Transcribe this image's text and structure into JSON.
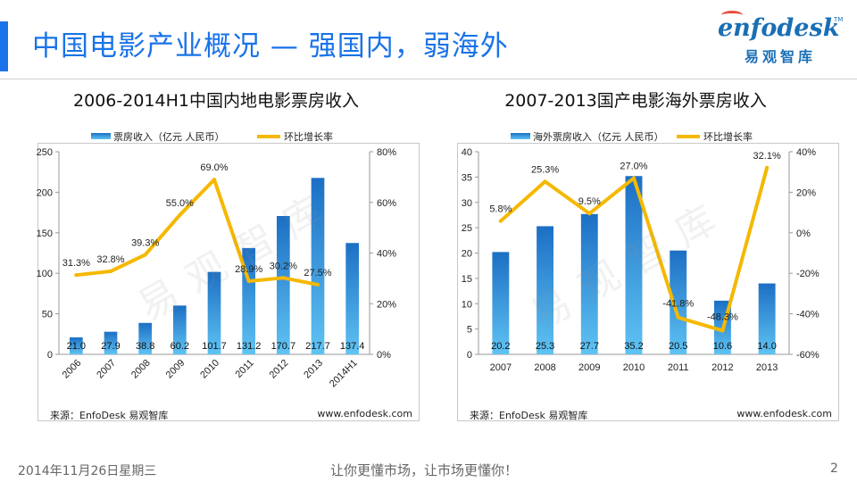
{
  "slide": {
    "title": "中国电影产业概况 — 强国内，弱海外",
    "footer_date": "2014年11月26日星期三",
    "footer_slogan": "让你更懂市场，让市场更懂你！",
    "page_number": "2",
    "accent_color": "#1a73e8"
  },
  "logo": {
    "word": "enfodesk",
    "tm": "TM",
    "cn": "易观智库"
  },
  "watermark": "易观智库",
  "chart_data": [
    {
      "type": "bar",
      "title": "2006-2014H1中国内地电影票房收入",
      "categories": [
        "2006",
        "2007",
        "2008",
        "2009",
        "2010",
        "2011",
        "2012",
        "2013",
        "2014H1"
      ],
      "series": [
        {
          "name": "票房收入（亿元 人民币）",
          "type": "bar",
          "axis": "left",
          "values": [
            21.0,
            27.9,
            38.8,
            60.2,
            101.7,
            131.2,
            170.7,
            217.7,
            137.4
          ]
        },
        {
          "name": "环比增长率",
          "type": "line",
          "axis": "right",
          "values": [
            31.3,
            32.8,
            39.3,
            55.0,
            69.0,
            28.9,
            30.2,
            27.5,
            null
          ]
        }
      ],
      "bar_labels": [
        "21.0",
        "27.9",
        "38.8",
        "60.2",
        "101.7",
        "131.2",
        "170.7",
        "217.7",
        "137.4"
      ],
      "line_labels": [
        "31.3%",
        "32.8%",
        "39.3%",
        "55.0%",
        "69.0%",
        "28.9%",
        "30.2%",
        "27.5%"
      ],
      "left_axis": {
        "ylim": [
          0,
          250
        ],
        "ticks": [
          "0",
          "50",
          "100",
          "150",
          "200",
          "250"
        ]
      },
      "right_axis": {
        "ylim": [
          0,
          80
        ],
        "ticks": [
          "0%",
          "20%",
          "40%",
          "60%",
          "80%"
        ]
      },
      "x_labels_rotated": true,
      "legend_placement": "top",
      "source": "来源：EnfoDesk 易观智库",
      "website": "www.enfodesk.com",
      "colors": {
        "bar": "#2b8fd8",
        "line": "#f5b800"
      }
    },
    {
      "type": "bar",
      "title": "2007-2013国产电影海外票房收入",
      "categories": [
        "2007",
        "2008",
        "2009",
        "2010",
        "2011",
        "2012",
        "2013"
      ],
      "series": [
        {
          "name": "海外票房收入（亿元 人民币）",
          "type": "bar",
          "axis": "left",
          "values": [
            20.2,
            25.3,
            27.7,
            35.2,
            20.5,
            10.6,
            14.0
          ]
        },
        {
          "name": "环比增长率",
          "type": "line",
          "axis": "right",
          "values": [
            5.8,
            25.3,
            9.5,
            27.0,
            -41.8,
            -48.3,
            32.1
          ]
        }
      ],
      "bar_labels": [
        "20.2",
        "25.3",
        "27.7",
        "35.2",
        "20.5",
        "10.6",
        "14.0"
      ],
      "line_labels": [
        "5.8%",
        "25.3%",
        "9.5%",
        "27.0%",
        "-41.8%",
        "-48.3%",
        "32.1%"
      ],
      "left_axis": {
        "ylim": [
          0,
          40
        ],
        "ticks": [
          "0",
          "5",
          "10",
          "15",
          "20",
          "25",
          "30",
          "35",
          "40"
        ]
      },
      "right_axis": {
        "ylim": [
          -60,
          40
        ],
        "ticks": [
          "-60%",
          "-40%",
          "-20%",
          "0%",
          "20%",
          "40%"
        ]
      },
      "x_labels_rotated": false,
      "legend_placement": "top",
      "source": "来源：EnfoDesk 易观智库",
      "website": "www.enfodesk.com",
      "colors": {
        "bar": "#2b8fd8",
        "line": "#f5b800"
      }
    }
  ]
}
